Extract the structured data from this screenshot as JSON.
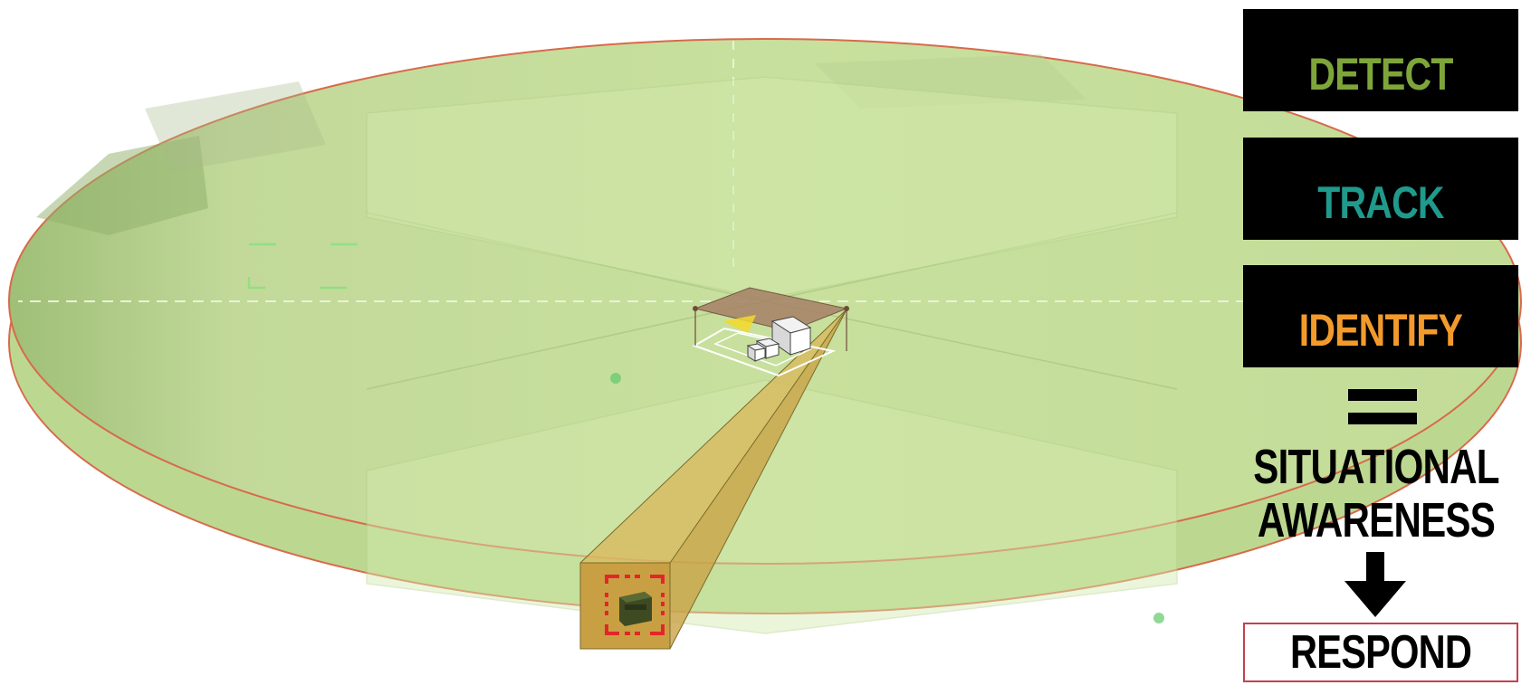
{
  "steps": [
    {
      "label": "DETECT",
      "color": "#7ea53a"
    },
    {
      "label": "TRACK",
      "color": "#1f9a8c"
    },
    {
      "label": "IDENTIFY",
      "color": "#f39a2c"
    }
  ],
  "equals_symbol": "=",
  "result": {
    "line1": "SITUATIONAL",
    "line2": "AWARENESS"
  },
  "action": {
    "label": "RESPOND",
    "border_color": "#c2424f"
  },
  "colors": {
    "coverage_zone": "#c6e39a",
    "zone_border": "#d86a4c",
    "camera_beam": "#d9b75a",
    "target_marker": "#e4252b",
    "vehicle": "#3e4a22"
  }
}
